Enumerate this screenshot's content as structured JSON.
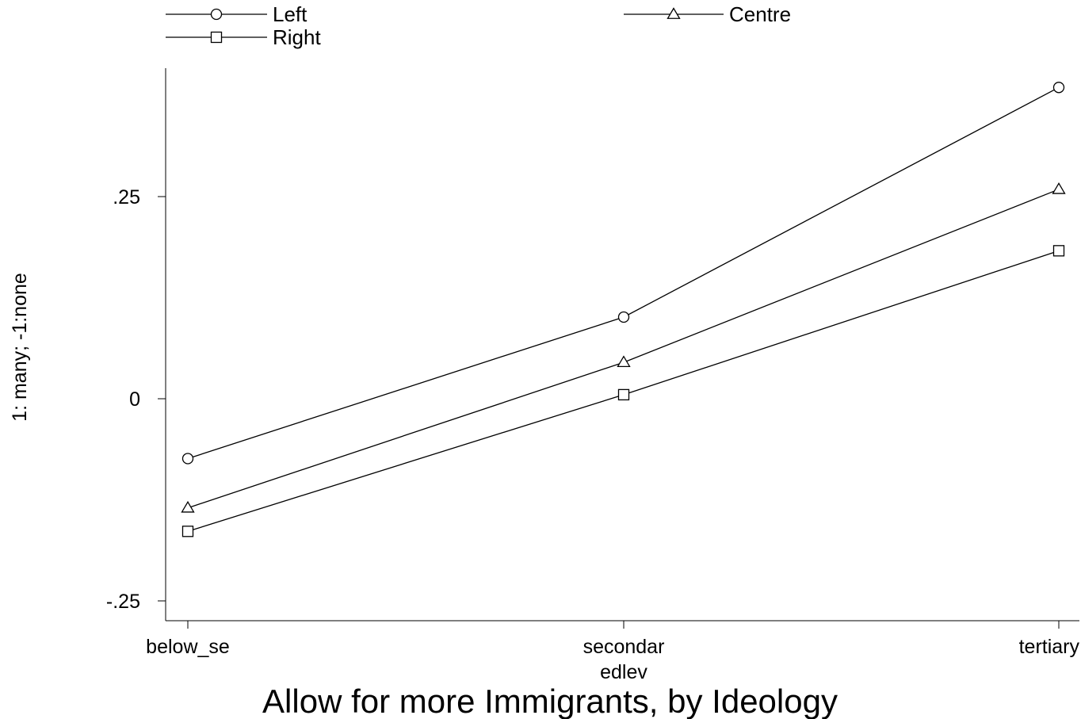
{
  "chart_data": {
    "type": "line",
    "categories": [
      "below_se",
      "secondar",
      "tertiary"
    ],
    "series": [
      {
        "name": "Left",
        "marker": "circle",
        "values": [
          -0.074,
          0.101,
          0.385
        ]
      },
      {
        "name": "Centre",
        "marker": "triangle",
        "values": [
          -0.135,
          0.045,
          0.259
        ]
      },
      {
        "name": "Right",
        "marker": "square",
        "values": [
          -0.164,
          0.005,
          0.183
        ]
      }
    ],
    "title": "Allow for more Immigrants, by Ideology",
    "xlabel": "edlev",
    "ylabel": "1: many; -1:none",
    "yticks": [
      -0.25,
      0,
      0.25
    ],
    "ytick_labels": [
      "-.25",
      "0",
      ".25"
    ],
    "ylim": [
      -0.275,
      0.41
    ],
    "grid": false,
    "legend_position": "top",
    "line_color": "#000000"
  }
}
